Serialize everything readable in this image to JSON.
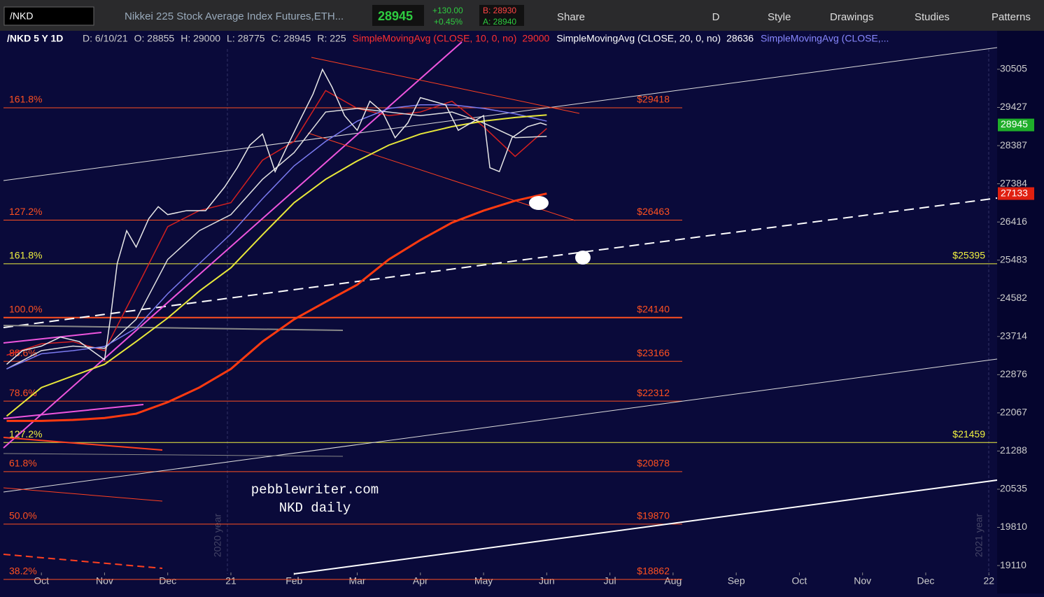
{
  "toolbar": {
    "symbol": "/NKD",
    "description": "Nikkei 225 Stock Average Index Futures,ETH...",
    "last": "28945",
    "change": "+130.00",
    "change_pct": "+0.45%",
    "bid": "B: 28930",
    "ask": "A: 28940",
    "buttons": [
      "Share",
      "D",
      "Style",
      "Drawings",
      "Studies",
      "Patterns"
    ]
  },
  "info": {
    "title": "/NKD 5 Y 1D",
    "fields": [
      "D: 6/10/21",
      "O: 28855",
      "H: 29000",
      "L: 28775",
      "C: 28945",
      "R: 225"
    ]
  },
  "chart_data": {
    "type": "line",
    "color": "#e8e8e8",
    "log_scale": true,
    "x": [
      -0.55,
      -0.3,
      0,
      0.3,
      0.6,
      0.9,
      1.0,
      1.1,
      1.2,
      1.35,
      1.5,
      1.7,
      1.85,
      2.0,
      2.3,
      2.6,
      2.9,
      3.1,
      3.3,
      3.5,
      3.7,
      3.9,
      4.1,
      4.3,
      4.45,
      4.6,
      4.8,
      5.0,
      5.2,
      5.4,
      5.6,
      5.8,
      6.0,
      6.2,
      6.4,
      6.6,
      6.8,
      7.0,
      7.1,
      7.25,
      7.45,
      7.7,
      7.9,
      8.0
    ],
    "values": [
      23100,
      23400,
      23500,
      23700,
      23600,
      23300,
      23200,
      24200,
      25400,
      26200,
      25800,
      26500,
      26800,
      26600,
      26700,
      26700,
      27300,
      27800,
      28400,
      28700,
      27700,
      28400,
      29100,
      29800,
      30500,
      30000,
      29200,
      28800,
      29600,
      29300,
      28600,
      29000,
      29700,
      29600,
      29500,
      28800,
      29000,
      29200,
      27800,
      27700,
      28600,
      28900,
      29000,
      28945
    ],
    "overlays": [
      {
        "name": "SimpleMovingAvg (CLOSE, 10, 0, no)",
        "current": 29000,
        "color": "#d42020",
        "x": [
          -0.55,
          0,
          0.5,
          1,
          1.5,
          2,
          2.5,
          3,
          3.5,
          4,
          4.5,
          5,
          5.5,
          6,
          6.5,
          7,
          7.5,
          8
        ],
        "values": [
          23300,
          23550,
          23600,
          23400,
          24800,
          26300,
          26700,
          26900,
          28000,
          28500,
          29900,
          29400,
          29200,
          29300,
          29600,
          28900,
          28100,
          28850
        ]
      },
      {
        "name": "SimpleMovingAvg (CLOSE, 20, 0, no)",
        "current": 28636,
        "color": "#e0e0e0",
        "x": [
          -0.55,
          0,
          0.5,
          1,
          1.5,
          2,
          2.5,
          3,
          3.5,
          4,
          4.5,
          5,
          5.5,
          6,
          6.5,
          7,
          7.5,
          8
        ],
        "values": [
          23000,
          23400,
          23500,
          23450,
          24100,
          25500,
          26200,
          26600,
          27500,
          28200,
          29300,
          29400,
          29300,
          29200,
          29300,
          29000,
          28600,
          28636
        ]
      },
      {
        "name": "SimpleMovingAvg (CLOSE,...",
        "color": "#7b7bf0",
        "x": [
          -0.55,
          0,
          0.5,
          1,
          1.5,
          2,
          2.5,
          3,
          3.5,
          4,
          4.5,
          5,
          5.5,
          6,
          6.5,
          7,
          7.5,
          8
        ],
        "values": [
          23000,
          23330,
          23400,
          23490,
          23900,
          24690,
          25400,
          26120,
          27000,
          27850,
          28500,
          29050,
          29400,
          29500,
          29500,
          29400,
          29250,
          29050
        ]
      },
      {
        "color": "#e8e83a",
        "x": [
          -0.55,
          0,
          0.5,
          1,
          1.5,
          2,
          2.5,
          3,
          3.5,
          4,
          4.5,
          5,
          5.5,
          6,
          6.5,
          7,
          7.5,
          8
        ],
        "values": [
          22000,
          22600,
          22850,
          23100,
          23600,
          24130,
          24750,
          25300,
          26100,
          26900,
          27500,
          27980,
          28400,
          28700,
          28900,
          29050,
          29150,
          29220
        ]
      },
      {
        "color": "#ff3a10",
        "x": [
          -0.55,
          0,
          0.5,
          1,
          1.5,
          2,
          2.5,
          3,
          3.5,
          4,
          4.5,
          5,
          5.5,
          6,
          6.5,
          7,
          7.5,
          8
        ],
        "values": [
          21900,
          21900,
          21920,
          21960,
          22050,
          22290,
          22600,
          23000,
          23600,
          24100,
          24500,
          24900,
          25500,
          25970,
          26400,
          26700,
          26950,
          27133
        ]
      }
    ],
    "levels": [
      {
        "pct": "161.8%",
        "value": 29418,
        "label": "$29418",
        "color": "#ff5020",
        "full": false
      },
      {
        "pct": "127.2%",
        "value": 26463,
        "label": "$26463",
        "color": "#ff5020",
        "full": false
      },
      {
        "pct": "161.8%",
        "value": 25395,
        "label": "$25395",
        "color": "#f0f040",
        "full": true
      },
      {
        "pct": "100.0%",
        "value": 24140,
        "label": "$24140",
        "color": "#ff5020",
        "full": false
      },
      {
        "pct": "88.6%",
        "value": 23166,
        "label": "$23166",
        "color": "#ff5020",
        "full": false
      },
      {
        "pct": "78.6%",
        "value": 22312,
        "label": "$22312",
        "color": "#ff5020",
        "full": false
      },
      {
        "pct": "127.2%",
        "value": 21459,
        "label": "$21459",
        "color": "#f0f040",
        "full": true
      },
      {
        "pct": "61.8%",
        "value": 20878,
        "label": "$20878",
        "color": "#ff5020",
        "full": false
      },
      {
        "pct": "50.0%",
        "value": 19870,
        "label": "$19870",
        "color": "#ff5020",
        "full": false
      },
      {
        "pct": "38.2%",
        "value": 18862,
        "label": "$18862",
        "color": "#ff5020",
        "full": false
      }
    ],
    "tags": [
      {
        "value": 28945,
        "color": "#1fae2a"
      },
      {
        "value": 27133,
        "color": "#e02010"
      }
    ],
    "ylim": [
      18960,
      31610
    ],
    "yticks": [
      19110,
      19810,
      20535,
      21288,
      22067,
      22876,
      23714,
      24582,
      25483,
      26416,
      27384,
      28387,
      29427,
      30505
    ],
    "xlim": [
      -0.6,
      15.13
    ],
    "xticks": [
      {
        "value": 0,
        "label": "Oct"
      },
      {
        "value": 1,
        "label": "Nov"
      },
      {
        "value": 2,
        "label": "Dec"
      },
      {
        "value": 3,
        "label": "21"
      },
      {
        "value": 4,
        "label": "Feb"
      },
      {
        "value": 5,
        "label": "Mar"
      },
      {
        "value": 6,
        "label": "Apr"
      },
      {
        "value": 7,
        "label": "May"
      },
      {
        "value": 8,
        "label": "Jun"
      },
      {
        "value": 9,
        "label": "Jul"
      },
      {
        "value": 10,
        "label": "Aug"
      },
      {
        "value": 11,
        "label": "Sep"
      },
      {
        "value": 12,
        "label": "Oct"
      },
      {
        "value": 13,
        "label": "Nov"
      },
      {
        "value": 14,
        "label": "Dec"
      },
      {
        "value": 15,
        "label": "22"
      }
    ],
    "watermarks": [
      "2020 year",
      "2021 year"
    ],
    "annotation": [
      "pebblewriter.com",
      "NKD daily"
    ]
  }
}
